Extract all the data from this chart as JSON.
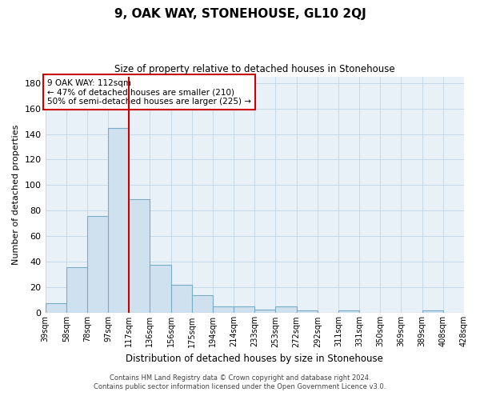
{
  "title": "9, OAK WAY, STONEHOUSE, GL10 2QJ",
  "subtitle": "Size of property relative to detached houses in Stonehouse",
  "xlabel": "Distribution of detached houses by size in Stonehouse",
  "ylabel": "Number of detached properties",
  "bar_color": "#cfe0ef",
  "bar_edge_color": "#7aacc8",
  "grid_color": "#b8cfe0",
  "background_color": "#e8f0f8",
  "vline_x": 3,
  "vline_color": "#cc0000",
  "annotation_text": "9 OAK WAY: 112sqm\n← 47% of detached houses are smaller (210)\n50% of semi-detached houses are larger (225) →",
  "annotation_box_color": "#ffffff",
  "annotation_box_edge": "#cc0000",
  "bin_labels": [
    "39sqm",
    "58sqm",
    "78sqm",
    "97sqm",
    "117sqm",
    "136sqm",
    "156sqm",
    "175sqm",
    "194sqm",
    "214sqm",
    "233sqm",
    "253sqm",
    "272sqm",
    "292sqm",
    "311sqm",
    "331sqm",
    "350sqm",
    "369sqm",
    "389sqm",
    "408sqm",
    "428sqm"
  ],
  "counts": [
    8,
    36,
    76,
    145,
    89,
    38,
    22,
    14,
    5,
    5,
    3,
    5,
    2,
    0,
    2,
    0,
    0,
    0,
    2,
    0
  ],
  "ylim": [
    0,
    185
  ],
  "yticks": [
    0,
    20,
    40,
    60,
    80,
    100,
    120,
    140,
    160,
    180
  ],
  "footer_line1": "Contains HM Land Registry data © Crown copyright and database right 2024.",
  "footer_line2": "Contains public sector information licensed under the Open Government Licence v3.0."
}
